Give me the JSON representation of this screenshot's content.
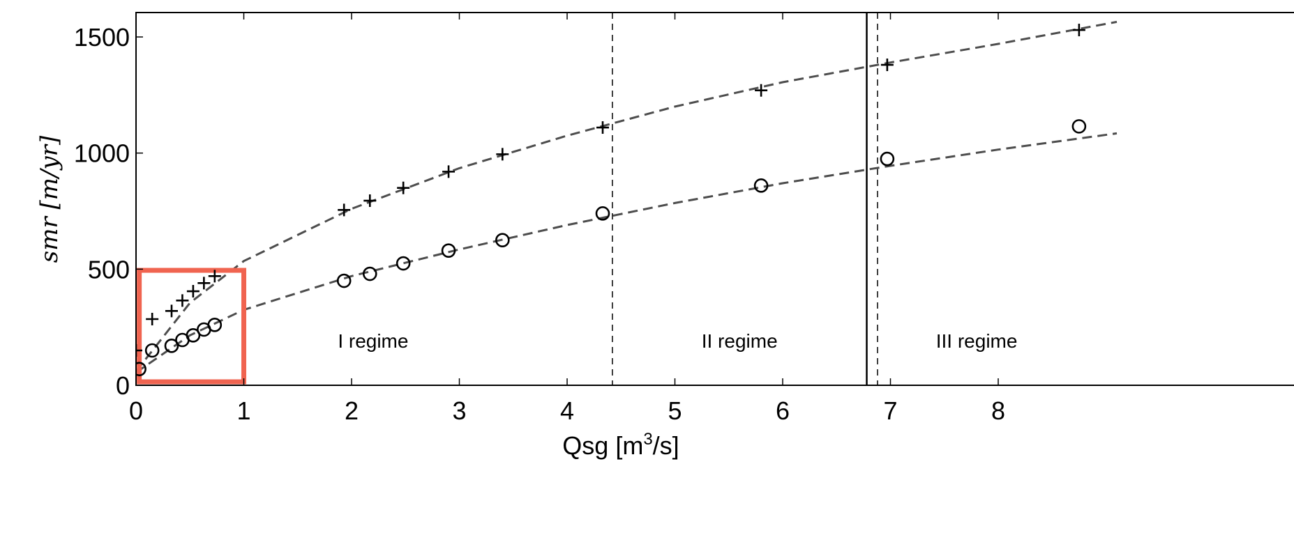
{
  "chart_data": {
    "type": "scatter",
    "title": "",
    "xlabel": "Qsg [m",
    "xlabel_sup": "3",
    "xlabel_tail": "/s]",
    "ylabel": "smr [m/yr]",
    "xlim": [
      0,
      9.1
    ],
    "ylim": [
      0,
      1600
    ],
    "xticks": [
      "0",
      "1",
      "2",
      "3",
      "4",
      "5",
      "6",
      "7",
      "8"
    ],
    "yticks": [
      "0",
      "500",
      "1000",
      "1500"
    ],
    "grid": false,
    "series": [
      {
        "marker": "plus",
        "x": [
          0.0,
          0.15,
          0.33,
          0.43,
          0.53,
          0.63,
          0.73,
          1.93,
          2.17,
          2.48,
          2.9,
          3.4,
          4.33,
          5.8,
          6.97,
          8.75
        ],
        "y": [
          150,
          285,
          320,
          365,
          405,
          440,
          470,
          755,
          795,
          850,
          920,
          995,
          1110,
          1270,
          1380,
          1530
        ]
      },
      {
        "marker": "circle",
        "x": [
          0.03,
          0.15,
          0.33,
          0.43,
          0.53,
          0.63,
          0.73,
          1.93,
          2.17,
          2.48,
          2.9,
          3.4,
          4.33,
          5.8,
          6.97,
          8.75
        ],
        "y": [
          70,
          150,
          170,
          195,
          215,
          240,
          260,
          450,
          480,
          525,
          580,
          625,
          740,
          860,
          975,
          1115
        ]
      }
    ],
    "fit_curves": [
      {
        "x": [
          0.0,
          0.5,
          1,
          2,
          3,
          4,
          5,
          6,
          7,
          8,
          9.1
        ],
        "y": [
          60,
          355,
          535,
          760,
          935,
          1075,
          1200,
          1305,
          1390,
          1470,
          1565
        ]
      },
      {
        "x": [
          0.0,
          0.5,
          1,
          2,
          3,
          4,
          5,
          6,
          7,
          8,
          9.1
        ],
        "y": [
          55,
          215,
          325,
          470,
          585,
          690,
          785,
          870,
          945,
          1015,
          1085
        ]
      }
    ],
    "vlines": [
      {
        "x": 4.42,
        "style": "dashed"
      },
      {
        "x": 6.78,
        "style": "solid"
      },
      {
        "x": 6.88,
        "style": "dashed"
      }
    ],
    "regions": [
      {
        "label": "I regime",
        "x": 2.2,
        "y": 190
      },
      {
        "label": "II regime",
        "x": 5.6,
        "y": 190
      },
      {
        "label": "III regime",
        "x": 7.8,
        "y": 190
      }
    ],
    "highlight_box": {
      "x": [
        0.03,
        1.0
      ],
      "y": [
        15,
        495
      ],
      "color": "#f06450"
    },
    "colors": {
      "marker": "#000000",
      "fit_line": "#4d4d4d",
      "highlight": "#f06450"
    }
  }
}
